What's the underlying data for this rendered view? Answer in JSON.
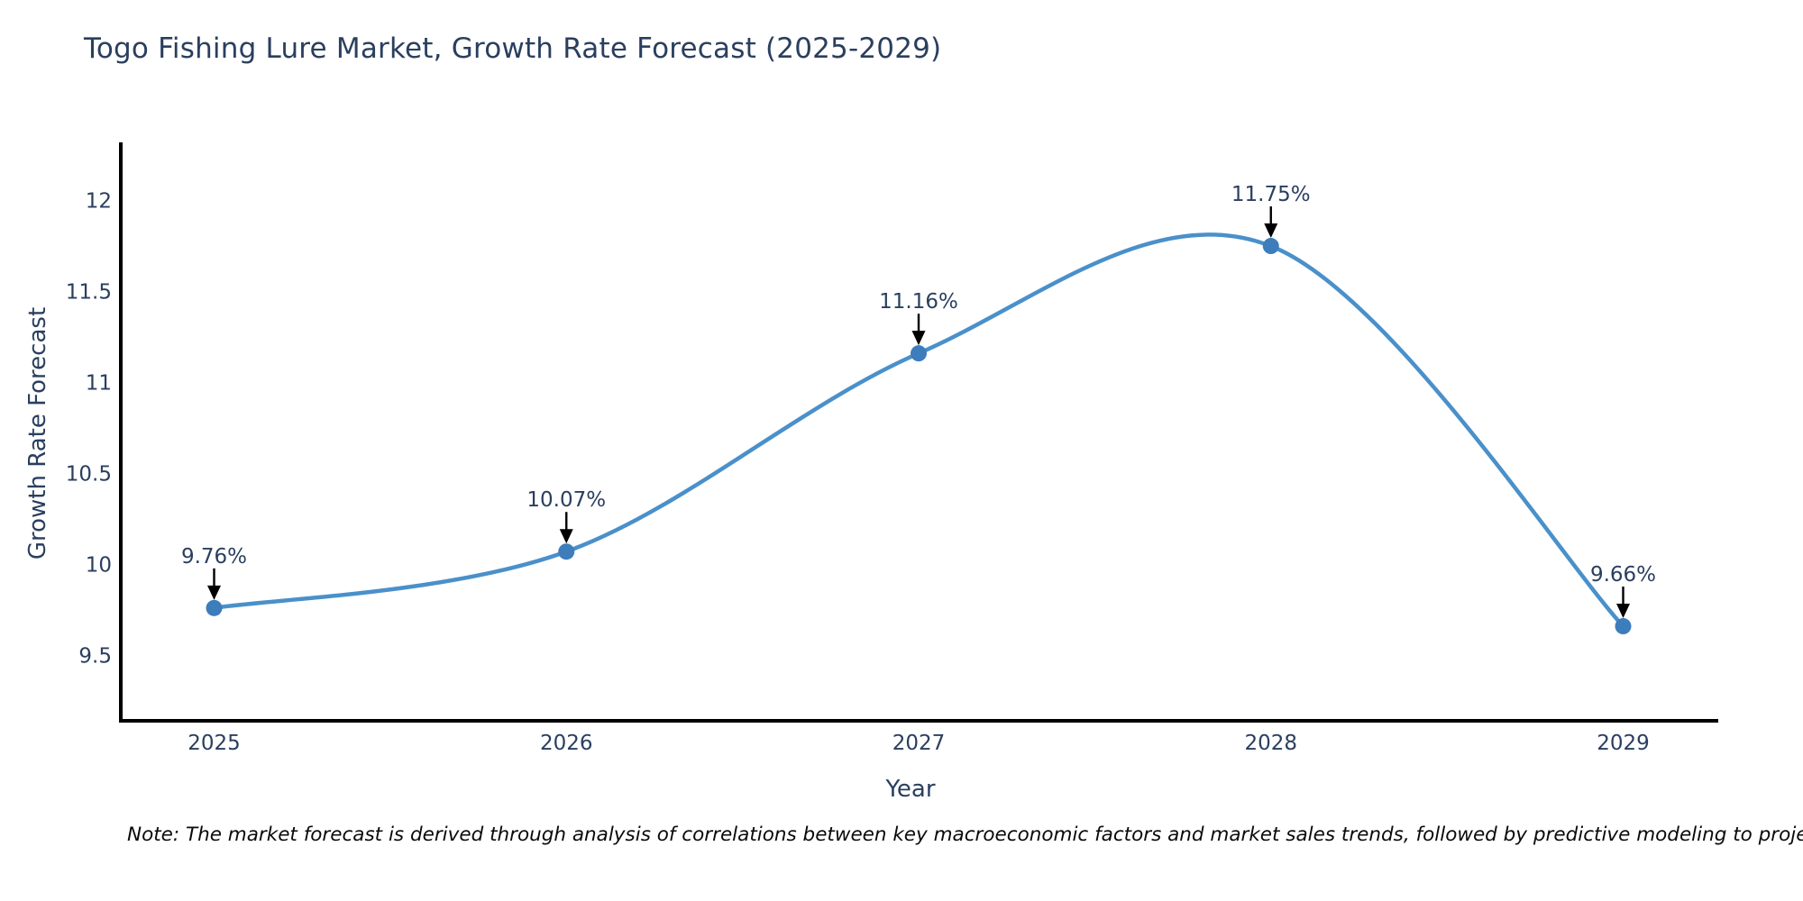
{
  "title": "Togo Fishing Lure Market, Growth Rate Forecast (2025-2029)",
  "note": "Note: The market forecast is derived through analysis of correlations between key macroeconomic factors and market sales trends, followed by predictive modeling to project future sales",
  "chart_data": {
    "type": "line",
    "title": "Togo Fishing Lure Market, Growth Rate Forecast (2025-2029)",
    "xlabel": "Year",
    "ylabel": "Growth Rate Forecast",
    "x": [
      2025,
      2026,
      2027,
      2028,
      2029
    ],
    "y": [
      9.76,
      10.07,
      11.16,
      11.75,
      9.66
    ],
    "point_labels": [
      "9.76%",
      "10.07%",
      "11.16%",
      "11.75%",
      "9.66%"
    ],
    "x_tick_values": [
      2025,
      2026,
      2027,
      2028,
      2029
    ],
    "x_tick_labels": [
      "2025",
      "2026",
      "2027",
      "2028",
      "2029"
    ],
    "y_tick_values": [
      9.5,
      10,
      10.5,
      11,
      11.5,
      12
    ],
    "y_tick_labels": [
      "9.5",
      "10",
      "10.5",
      "11",
      "11.5",
      "12"
    ],
    "xlim": [
      2024.73,
      2029.27
    ],
    "ylim": [
      9.14,
      12.31
    ],
    "line_shape": "spline",
    "markers": true,
    "grid": false,
    "legend": "none",
    "line_color": "#4a90ca",
    "marker_color": "#3d7dbc",
    "axis_color": "#000000",
    "text_color": "#2a3f5f",
    "annotation_arrow_color": "#000000"
  }
}
